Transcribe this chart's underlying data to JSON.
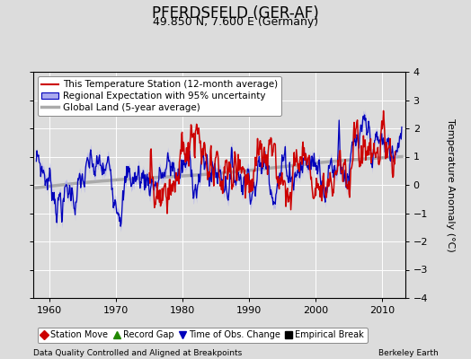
{
  "title": "PFERDSFELD (GER-AF)",
  "subtitle": "49.850 N, 7.600 E (Germany)",
  "ylabel": "Temperature Anomaly (°C)",
  "xlabel_note": "Data Quality Controlled and Aligned at Breakpoints",
  "xlabel_note_right": "Berkeley Earth",
  "ylim": [
    -4,
    4
  ],
  "xlim": [
    1957.5,
    2013.5
  ],
  "xticks": [
    1960,
    1970,
    1980,
    1990,
    2000,
    2010
  ],
  "yticks": [
    -4,
    -3,
    -2,
    -1,
    0,
    1,
    2,
    3,
    4
  ],
  "bg_color": "#dcdcdc",
  "plot_bg_color": "#dcdcdc",
  "red_color": "#cc0000",
  "blue_color": "#0000bb",
  "blue_fill_color": "#aaaaee",
  "gray_color": "#aaaaaa",
  "grid_color": "#ffffff",
  "legend_items": [
    {
      "label": "This Temperature Station (12-month average)",
      "color": "#cc0000",
      "lw": 1.5
    },
    {
      "label": "Regional Expectation with 95% uncertainty",
      "color": "#0000bb",
      "lw": 1.5
    },
    {
      "label": "Global Land (5-year average)",
      "color": "#aaaaaa",
      "lw": 2.5
    }
  ],
  "bottom_legend": [
    {
      "label": "Station Move",
      "color": "#cc0000",
      "marker": "D"
    },
    {
      "label": "Record Gap",
      "color": "#228800",
      "marker": "^"
    },
    {
      "label": "Time of Obs. Change",
      "color": "#0000bb",
      "marker": "v"
    },
    {
      "label": "Empirical Break",
      "color": "#000000",
      "marker": "s"
    }
  ],
  "title_fontsize": 12,
  "subtitle_fontsize": 9,
  "label_fontsize": 8,
  "tick_fontsize": 8,
  "legend_fontsize": 7.5
}
